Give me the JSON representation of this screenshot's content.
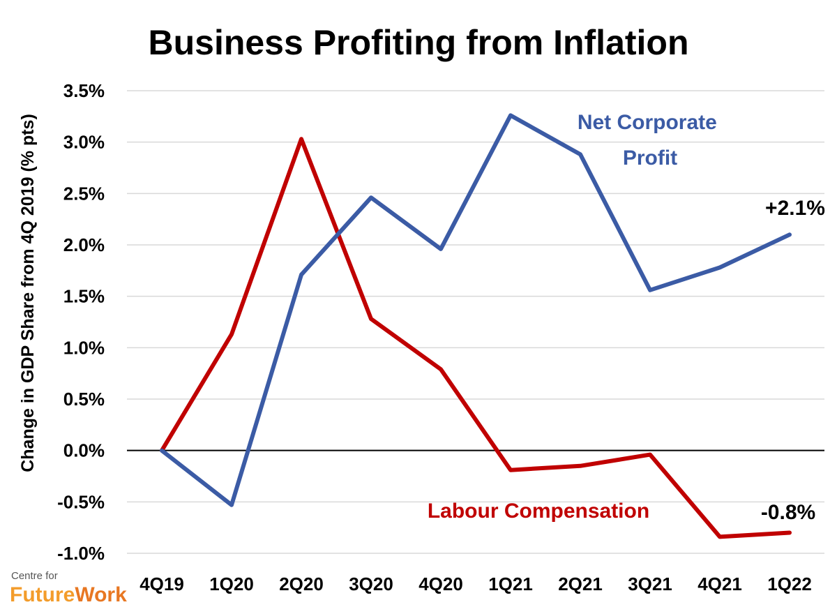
{
  "chart_data": {
    "type": "line",
    "title": "Business Profiting from Inflation",
    "xlabel": "",
    "ylabel": "Change in GDP Share from 4Q 2019 (% pts)",
    "categories": [
      "4Q19",
      "1Q20",
      "2Q20",
      "3Q20",
      "4Q20",
      "1Q21",
      "2Q21",
      "3Q21",
      "4Q21",
      "1Q22"
    ],
    "yticks": [
      "3.5%",
      "3.0%",
      "2.5%",
      "2.0%",
      "1.5%",
      "1.0%",
      "0.5%",
      "0.0%",
      "-0.5%",
      "-1.0%"
    ],
    "ylim": [
      -1.0,
      3.5
    ],
    "grid": true,
    "series": [
      {
        "name": "Net Corporate Profit",
        "label_lines": [
          "Net Corporate",
          "Profit"
        ],
        "color": "#3b5ba5",
        "values": [
          0.0,
          -0.53,
          1.71,
          2.46,
          1.96,
          3.26,
          2.88,
          1.56,
          1.78,
          2.1
        ],
        "end_label": "+2.1%"
      },
      {
        "name": "Labour Compensation",
        "label_lines": [
          "Labour Compensation"
        ],
        "color": "#c00000",
        "values": [
          0.0,
          1.13,
          3.03,
          1.28,
          0.79,
          -0.19,
          -0.15,
          -0.04,
          -0.84,
          -0.8
        ],
        "end_label": "-0.8%"
      }
    ]
  },
  "logo": {
    "top": "Centre for",
    "bottom_a": "Future",
    "bottom_b": "Work",
    "color_a": "#f39c2b",
    "color_b": "#e87722"
  }
}
